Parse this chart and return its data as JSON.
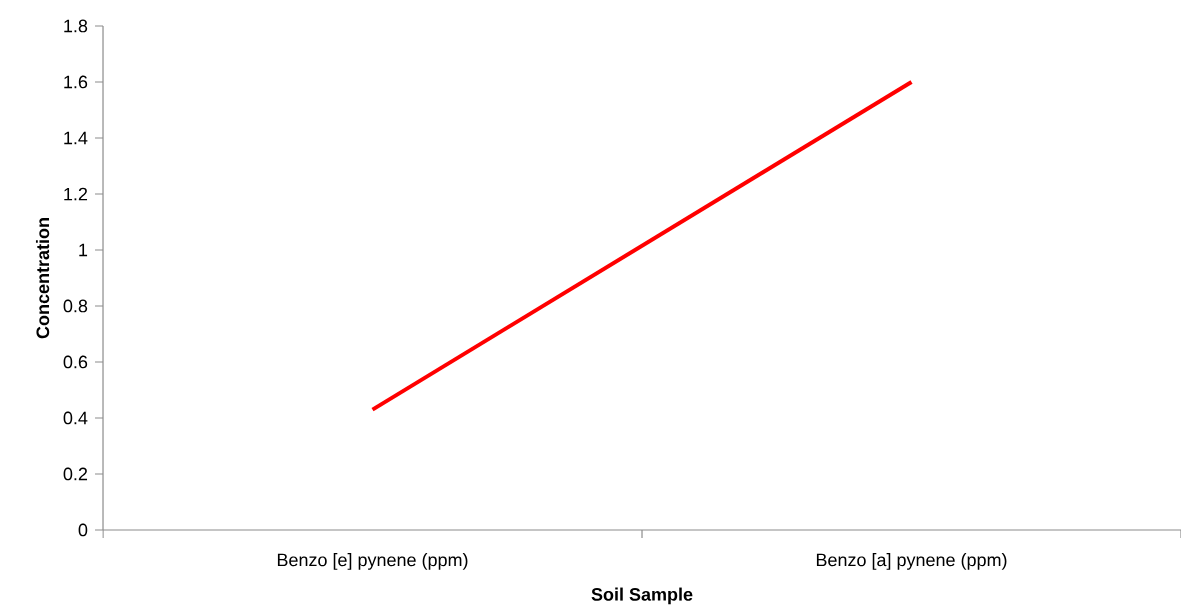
{
  "chart_data": {
    "type": "line",
    "xlabel": "Soil Sample",
    "ylabel": "Concentration",
    "categories": [
      "Benzo [e] pynene (ppm)",
      "Benzo [a] pynene (ppm)"
    ],
    "series": [
      {
        "color": "#ff0000",
        "values": [
          0.43,
          1.6
        ]
      }
    ],
    "ylim": [
      0,
      1.8
    ],
    "yticks": [
      0,
      0.2,
      0.4,
      0.6,
      0.8,
      1,
      1.2,
      1.4,
      1.6,
      1.8
    ],
    "marker": "none",
    "grid": false
  }
}
